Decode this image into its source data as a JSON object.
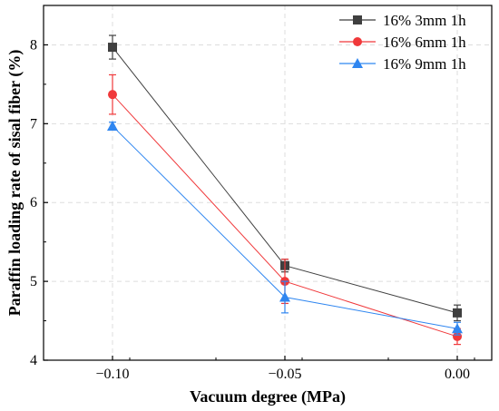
{
  "chart_data": {
    "type": "line",
    "xlabel": "Vacuum degree (MPa)",
    "ylabel": "Paraffin loading rate of sisal fiber (%)",
    "xlim": [
      -0.12,
      0.01
    ],
    "ylim": [
      4,
      8.5
    ],
    "x_ticks": [
      -0.1,
      -0.05,
      0.0
    ],
    "x_tick_labels": [
      "−0.10",
      "−0.05",
      "0.00"
    ],
    "y_ticks": [
      4,
      5,
      6,
      7,
      8
    ],
    "y_tick_labels": [
      "4",
      "5",
      "6",
      "7",
      "8"
    ],
    "grid": true,
    "legend_position": "top-right",
    "x": [
      -0.1,
      -0.05,
      0.0
    ],
    "series": [
      {
        "name": "16% 3mm 1h",
        "values": [
          7.97,
          5.2,
          4.6
        ],
        "error": [
          0.15,
          0.08,
          0.1
        ],
        "color": "#3f3f3f",
        "marker": "square"
      },
      {
        "name": "16% 6mm 1h",
        "values": [
          7.37,
          5.0,
          4.3
        ],
        "error": [
          0.25,
          0.28,
          0.1
        ],
        "color": "#f0383a",
        "marker": "circle"
      },
      {
        "name": "16% 9mm 1h",
        "values": [
          6.97,
          4.8,
          4.4
        ],
        "error": [
          0.05,
          0.2,
          0.08
        ],
        "color": "#2f86f0",
        "marker": "triangle"
      }
    ]
  }
}
